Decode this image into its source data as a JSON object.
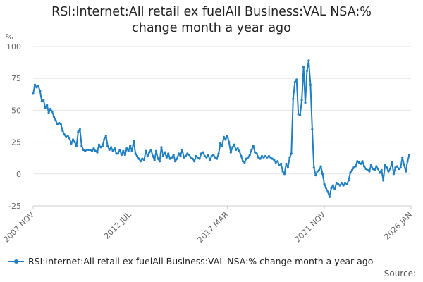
{
  "title": "RSI:Internet:All retail ex fuelAll Business:VAL NSA:% change month a year ago",
  "source_label": "Source:",
  "chart_data": {
    "type": "line",
    "title": "RSI:Internet:All retail ex fuelAll Business:VAL NSA:% change month a year ago",
    "ylabel": "%",
    "xlabel": "",
    "ylim": [
      -25,
      100
    ],
    "y_ticks": [
      -25,
      0,
      25,
      50,
      75,
      100
    ],
    "y_tick_labels": [
      "-25",
      "0",
      "25",
      "50",
      "75",
      "100"
    ],
    "x_ticks": [
      "2007-11",
      "2012-07",
      "2017-03",
      "2021-11",
      "2026-01"
    ],
    "x_tick_labels": [
      "2007 NOV",
      "2012 JUL",
      "2017 MAR",
      "2021 NOV",
      "2026 JAN"
    ],
    "x_range": [
      "2007-11",
      "2026-01"
    ],
    "grid": "horizontal",
    "legend_position": "bottom",
    "series": [
      {
        "name": "RSI:Internet:All retail ex fuelAll Business:VAL NSA:% change month a year ago",
        "color": "#1f7fc0",
        "points": [
          [
            "2007-11",
            63
          ],
          [
            "2007-12",
            70
          ],
          [
            "2008-01",
            68
          ],
          [
            "2008-02",
            69
          ],
          [
            "2008-03",
            65
          ],
          [
            "2008-04",
            57
          ],
          [
            "2008-05",
            58
          ],
          [
            "2008-06",
            52
          ],
          [
            "2008-07",
            54
          ],
          [
            "2008-08",
            48
          ],
          [
            "2008-09",
            51
          ],
          [
            "2008-10",
            49
          ],
          [
            "2008-11",
            45
          ],
          [
            "2008-12",
            42
          ],
          [
            "2009-01",
            39
          ],
          [
            "2009-02",
            40
          ],
          [
            "2009-03",
            39
          ],
          [
            "2009-04",
            34
          ],
          [
            "2009-05",
            31
          ],
          [
            "2009-06",
            29
          ],
          [
            "2009-07",
            30
          ],
          [
            "2009-08",
            28
          ],
          [
            "2009-09",
            24
          ],
          [
            "2009-10",
            27
          ],
          [
            "2009-11",
            25
          ],
          [
            "2009-12",
            22
          ],
          [
            "2010-01",
            33
          ],
          [
            "2010-02",
            35
          ],
          [
            "2010-03",
            22
          ],
          [
            "2010-04",
            19
          ],
          [
            "2010-05",
            18
          ],
          [
            "2010-06",
            19
          ],
          [
            "2010-07",
            19
          ],
          [
            "2010-08",
            19
          ],
          [
            "2010-09",
            18
          ],
          [
            "2010-10",
            20
          ],
          [
            "2010-11",
            18
          ],
          [
            "2010-12",
            17
          ],
          [
            "2011-01",
            23
          ],
          [
            "2011-02",
            21
          ],
          [
            "2011-03",
            22
          ],
          [
            "2011-04",
            27
          ],
          [
            "2011-05",
            30
          ],
          [
            "2011-06",
            22
          ],
          [
            "2011-07",
            19
          ],
          [
            "2011-08",
            21
          ],
          [
            "2011-09",
            18
          ],
          [
            "2011-10",
            20
          ],
          [
            "2011-11",
            16
          ],
          [
            "2011-12",
            16
          ],
          [
            "2012-01",
            19
          ],
          [
            "2012-02",
            15
          ],
          [
            "2012-03",
            18
          ],
          [
            "2012-04",
            15
          ],
          [
            "2012-05",
            20
          ],
          [
            "2012-06",
            18
          ],
          [
            "2012-07",
            22
          ],
          [
            "2012-08",
            18
          ],
          [
            "2012-09",
            26
          ],
          [
            "2012-10",
            16
          ],
          [
            "2012-11",
            14
          ],
          [
            "2012-12",
            12
          ],
          [
            "2013-01",
            10
          ],
          [
            "2013-02",
            12
          ],
          [
            "2013-03",
            11
          ],
          [
            "2013-04",
            18
          ],
          [
            "2013-05",
            14
          ],
          [
            "2013-06",
            17
          ],
          [
            "2013-07",
            19
          ],
          [
            "2013-08",
            14
          ],
          [
            "2013-09",
            11
          ],
          [
            "2013-10",
            18
          ],
          [
            "2013-11",
            12
          ],
          [
            "2013-12",
            10
          ],
          [
            "2014-01",
            21
          ],
          [
            "2014-02",
            14
          ],
          [
            "2014-03",
            17
          ],
          [
            "2014-04",
            13
          ],
          [
            "2014-05",
            16
          ],
          [
            "2014-06",
            12
          ],
          [
            "2014-07",
            13
          ],
          [
            "2014-08",
            15
          ],
          [
            "2014-09",
            10
          ],
          [
            "2014-10",
            12
          ],
          [
            "2014-11",
            16
          ],
          [
            "2014-12",
            14
          ],
          [
            "2015-01",
            19
          ],
          [
            "2015-02",
            13
          ],
          [
            "2015-03",
            14
          ],
          [
            "2015-04",
            16
          ],
          [
            "2015-05",
            15
          ],
          [
            "2015-06",
            13
          ],
          [
            "2015-07",
            12
          ],
          [
            "2015-08",
            10
          ],
          [
            "2015-09",
            14
          ],
          [
            "2015-10",
            13
          ],
          [
            "2015-11",
            12
          ],
          [
            "2015-12",
            16
          ],
          [
            "2016-01",
            17
          ],
          [
            "2016-02",
            14
          ],
          [
            "2016-03",
            13
          ],
          [
            "2016-04",
            15
          ],
          [
            "2016-05",
            11
          ],
          [
            "2016-06",
            14
          ],
          [
            "2016-07",
            15
          ],
          [
            "2016-08",
            13
          ],
          [
            "2016-09",
            12
          ],
          [
            "2016-10",
            16
          ],
          [
            "2016-11",
            24
          ],
          [
            "2016-12",
            22
          ],
          [
            "2017-01",
            29
          ],
          [
            "2017-02",
            27
          ],
          [
            "2017-03",
            30
          ],
          [
            "2017-04",
            25
          ],
          [
            "2017-05",
            17
          ],
          [
            "2017-06",
            21
          ],
          [
            "2017-07",
            23
          ],
          [
            "2017-08",
            19
          ],
          [
            "2017-09",
            20
          ],
          [
            "2017-10",
            18
          ],
          [
            "2017-11",
            14
          ],
          [
            "2017-12",
            10
          ],
          [
            "2018-01",
            9
          ],
          [
            "2018-02",
            12
          ],
          [
            "2018-03",
            13
          ],
          [
            "2018-04",
            15
          ],
          [
            "2018-05",
            19
          ],
          [
            "2018-06",
            22
          ],
          [
            "2018-07",
            17
          ],
          [
            "2018-08",
            16
          ],
          [
            "2018-09",
            13
          ],
          [
            "2018-10",
            12
          ],
          [
            "2018-11",
            14
          ],
          [
            "2018-12",
            13
          ],
          [
            "2019-01",
            14
          ],
          [
            "2019-02",
            13
          ],
          [
            "2019-03",
            14
          ],
          [
            "2019-04",
            13
          ],
          [
            "2019-05",
            12
          ],
          [
            "2019-06",
            11
          ],
          [
            "2019-07",
            9
          ],
          [
            "2019-08",
            10
          ],
          [
            "2019-09",
            7
          ],
          [
            "2019-10",
            8
          ],
          [
            "2019-11",
            2
          ],
          [
            "2019-12",
            0
          ],
          [
            "2020-01",
            8
          ],
          [
            "2020-02",
            5
          ],
          [
            "2020-03",
            13
          ],
          [
            "2020-04",
            16
          ],
          [
            "2020-05",
            59
          ],
          [
            "2020-06",
            72
          ],
          [
            "2020-07",
            74
          ],
          [
            "2020-08",
            47
          ],
          [
            "2020-09",
            46
          ],
          [
            "2020-10",
            58
          ],
          [
            "2020-11",
            84
          ],
          [
            "2020-12",
            56
          ],
          [
            "2021-01",
            81
          ],
          [
            "2021-02",
            89
          ],
          [
            "2021-03",
            70
          ],
          [
            "2021-04",
            35
          ],
          [
            "2021-05",
            5
          ],
          [
            "2021-06",
            -1
          ],
          [
            "2021-07",
            2
          ],
          [
            "2021-08",
            3
          ],
          [
            "2021-09",
            6
          ],
          [
            "2021-10",
            0
          ],
          [
            "2021-11",
            -8
          ],
          [
            "2021-12",
            -11
          ],
          [
            "2022-01",
            -14
          ],
          [
            "2022-02",
            -18
          ],
          [
            "2022-03",
            -11
          ],
          [
            "2022-04",
            -9
          ],
          [
            "2022-05",
            -12
          ],
          [
            "2022-06",
            -7
          ],
          [
            "2022-07",
            -8
          ],
          [
            "2022-08",
            -9
          ],
          [
            "2022-09",
            -7
          ],
          [
            "2022-10",
            -9
          ],
          [
            "2022-11",
            -7
          ],
          [
            "2022-12",
            -8
          ],
          [
            "2023-01",
            -5
          ],
          [
            "2023-02",
            1
          ],
          [
            "2023-03",
            3
          ],
          [
            "2023-04",
            5
          ],
          [
            "2023-05",
            6
          ],
          [
            "2023-06",
            10
          ],
          [
            "2023-07",
            9
          ],
          [
            "2023-08",
            8
          ],
          [
            "2023-09",
            10
          ],
          [
            "2023-10",
            6
          ],
          [
            "2023-11",
            4
          ],
          [
            "2023-12",
            3
          ],
          [
            "2024-01",
            2
          ],
          [
            "2024-02",
            7
          ],
          [
            "2024-03",
            4
          ],
          [
            "2024-04",
            3
          ],
          [
            "2024-05",
            6
          ],
          [
            "2024-06",
            4
          ],
          [
            "2024-07",
            1
          ],
          [
            "2024-08",
            3
          ],
          [
            "2024-09",
            -5
          ],
          [
            "2024-10",
            7
          ],
          [
            "2024-11",
            5
          ],
          [
            "2024-12",
            2
          ],
          [
            "2025-01",
            4
          ],
          [
            "2025-02",
            9
          ],
          [
            "2025-03",
            0
          ],
          [
            "2025-04",
            5
          ],
          [
            "2025-05",
            6
          ],
          [
            "2025-06",
            4
          ],
          [
            "2025-07",
            5
          ],
          [
            "2025-08",
            13
          ],
          [
            "2025-09",
            7
          ],
          [
            "2025-10",
            2
          ],
          [
            "2025-11",
            10
          ],
          [
            "2025-12",
            15
          ]
        ]
      }
    ]
  }
}
